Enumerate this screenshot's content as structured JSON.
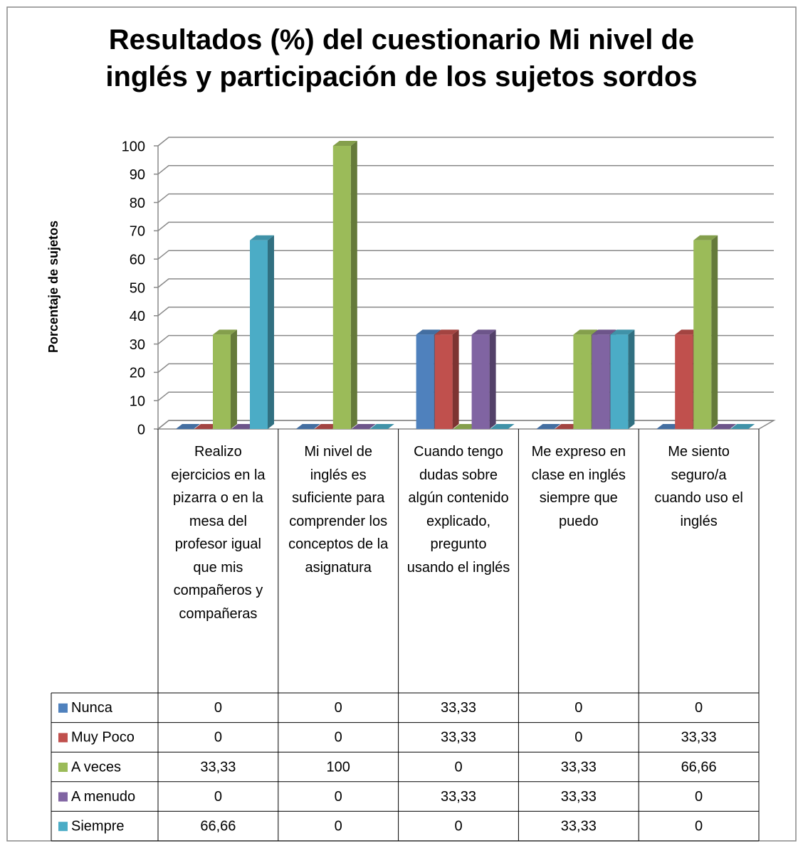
{
  "chart_data": {
    "type": "bar3d",
    "title": "Resultados (%) del cuestionario Mi nivel de inglés y participación de los sujetos sordos",
    "y_label": "Porcentaje de sujetos",
    "categories": [
      "Realizo ejercicios en la pizarra o en la mesa del profesor igual que mis compañeros y compañeras",
      "Mi nivel de inglés es suficiente para comprender los conceptos de la asignatura",
      "Cuando tengo dudas sobre algún contenido explicado, pregunto usando el inglés",
      "Me expreso en clase en inglés siempre que puedo",
      "Me siento seguro/a cuando uso el inglés"
    ],
    "series": [
      {
        "name": "Nunca",
        "color": "#4f81bd",
        "values": [
          0,
          0,
          33.33,
          0,
          0
        ],
        "value_labels": [
          "0",
          "0",
          "33,33",
          "0",
          "0"
        ]
      },
      {
        "name": "Muy Poco",
        "color": "#c0504d",
        "values": [
          0,
          0,
          33.33,
          0,
          33.33
        ],
        "value_labels": [
          "0",
          "0",
          "33,33",
          "0",
          "33,33"
        ]
      },
      {
        "name": "A veces",
        "color": "#9bbb59",
        "values": [
          33.33,
          100,
          0,
          33.33,
          66.66
        ],
        "value_labels": [
          "33,33",
          "100",
          "0",
          "33,33",
          "66,66"
        ]
      },
      {
        "name": "A menudo",
        "color": "#8064a2",
        "values": [
          0,
          0,
          33.33,
          33.33,
          0
        ],
        "value_labels": [
          "0",
          "0",
          "33,33",
          "33,33",
          "0"
        ]
      },
      {
        "name": "Siempre",
        "color": "#4bacc6",
        "values": [
          66.66,
          0,
          0,
          33.33,
          0
        ],
        "value_labels": [
          "66,66",
          "0",
          "0",
          "33,33",
          "0"
        ]
      }
    ],
    "ylim": [
      0,
      100
    ],
    "yticks": [
      0,
      10,
      20,
      30,
      40,
      50,
      60,
      70,
      80,
      90,
      100
    ],
    "grid": true,
    "data_table": true
  }
}
